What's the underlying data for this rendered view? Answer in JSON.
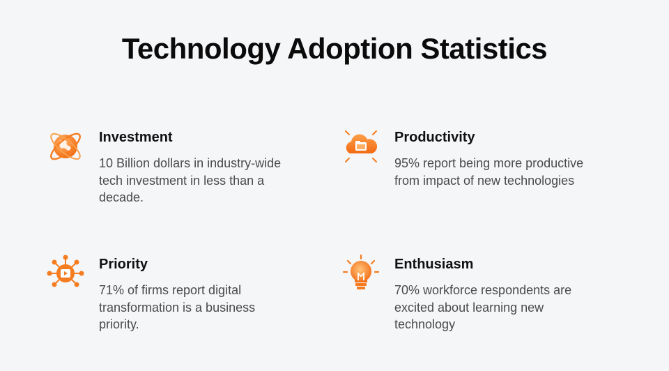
{
  "page": {
    "title": "Technology Adoption Statistics"
  },
  "colors": {
    "accent_orange": "#f57c1f",
    "accent_light": "#ffb066",
    "background": "#f5f6f8",
    "heading_text": "#111111",
    "body_text": "#4a4a4a"
  },
  "stats": {
    "investment": {
      "icon": "globe-orbit-icon",
      "title": "Investment",
      "description": "10 Billion dollars in industry-wide tech investment in less than a decade."
    },
    "productivity": {
      "icon": "cloud-folder-icon",
      "title": "Productivity",
      "description": "95% report being more productive from impact of new technologies"
    },
    "priority": {
      "icon": "network-hub-icon",
      "title": "Priority",
      "description": "71% of firms report digital transformation is a business priority."
    },
    "enthusiasm": {
      "icon": "lightbulb-icon",
      "title": "Enthusiasm",
      "description": "70% workforce respondents are excited about learning new technology"
    }
  }
}
